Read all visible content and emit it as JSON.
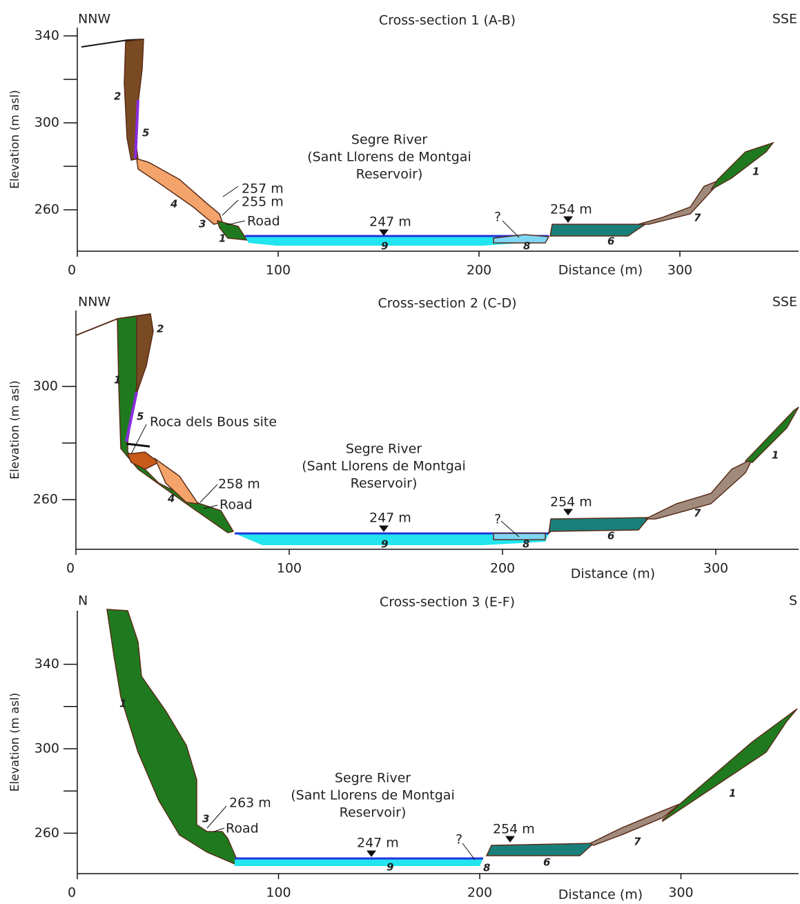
{
  "panels": [
    {
      "title": "Cross-section 1 (A-B)",
      "left": "NNW",
      "right": "SSE",
      "y_label": "Elevation (m asl)",
      "x_label": "Distance (m)",
      "xticks": [
        0,
        100,
        200,
        300
      ],
      "yticks": [
        260,
        300,
        340
      ],
      "river": [
        "Segre River",
        "(Sant Llorens de Montgai",
        "Reservoir)"
      ],
      "annotations": [
        "257 m",
        "255 m",
        "Road",
        "247 m",
        "?",
        "254 m"
      ],
      "units": [
        "1",
        "2",
        "3",
        "4",
        "5",
        "6",
        "7",
        "8",
        "9",
        "1"
      ]
    },
    {
      "title": "Cross-section 2 (C-D)",
      "left": "NNW",
      "right": "SSE",
      "y_label": "Elevation (m asl)",
      "x_label": "Distance (m)",
      "xticks": [
        0,
        100,
        200,
        300
      ],
      "yticks": [
        260,
        300
      ],
      "river": [
        "Segre River",
        "(Sant Llorens de Montgai",
        "Reservoir)"
      ],
      "annotations": [
        "258 m",
        "Road",
        "247 m",
        "?",
        "254 m",
        "Roca dels Bous site"
      ],
      "units": [
        "1",
        "2",
        "4",
        "5",
        "6",
        "7",
        "8",
        "9",
        "1"
      ]
    },
    {
      "title": "Cross-section 3 (E-F)",
      "left": "N",
      "right": "S",
      "y_label": "Elevation (m asl)",
      "x_label": "Distance (m)",
      "xticks": [
        0,
        100,
        200,
        300
      ],
      "yticks": [
        260,
        300,
        340
      ],
      "river": [
        "Segre River",
        "(Sant Llorens de Montgai",
        "Reservoir)"
      ],
      "annotations": [
        "263 m",
        "Road",
        "247 m",
        "?",
        "254 m"
      ],
      "units": [
        "1",
        "3",
        "9",
        "8",
        "6",
        "7",
        "1"
      ]
    }
  ]
}
